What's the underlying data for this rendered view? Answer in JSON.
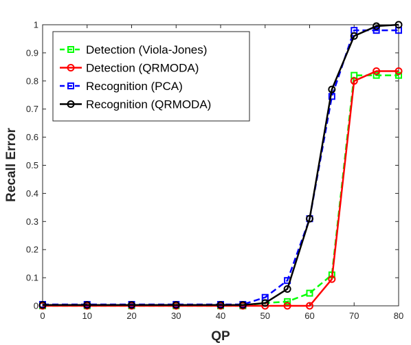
{
  "chart_data": {
    "type": "line",
    "title": "",
    "xlabel": "QP",
    "ylabel": "Recall Error",
    "xlim": [
      0,
      80
    ],
    "ylim": [
      0,
      1
    ],
    "xticks": [
      0,
      10,
      20,
      30,
      40,
      50,
      60,
      70,
      80
    ],
    "xtick_labels": [
      "0",
      "10",
      "20",
      "30",
      "40",
      "50",
      "60",
      "70",
      "80"
    ],
    "yticks": [
      0,
      0.1,
      0.2,
      0.3,
      0.4,
      0.5,
      0.6,
      0.7,
      0.8,
      0.9,
      1
    ],
    "ytick_labels": [
      "0",
      "0.1",
      "0.2",
      "0.3",
      "0.4",
      "0.5",
      "0.6",
      "0.7",
      "0.8",
      "0.9",
      "1"
    ],
    "grid": false,
    "legend_position": "top-left",
    "x": [
      0,
      10,
      20,
      30,
      40,
      45,
      50,
      55,
      60,
      65,
      70,
      75,
      80
    ],
    "series": [
      {
        "name": "Detection (Viola-Jones)",
        "color": "#00ff00",
        "dash": "dashed",
        "marker": "square",
        "values": [
          0,
          0,
          0,
          0,
          0,
          0,
          0.01,
          0.015,
          0.045,
          0.11,
          0.82,
          0.82,
          0.82
        ]
      },
      {
        "name": "Detection (QRMODA)",
        "color": "#ff0000",
        "dash": "solid",
        "marker": "circle",
        "values": [
          0,
          0,
          0,
          0,
          0,
          0,
          0,
          0,
          0,
          0.095,
          0.8,
          0.835,
          0.835
        ]
      },
      {
        "name": "Recognition (PCA)",
        "color": "#0000ff",
        "dash": "dashed",
        "marker": "square",
        "values": [
          0.005,
          0.005,
          0.005,
          0.005,
          0.005,
          0.005,
          0.03,
          0.09,
          0.31,
          0.745,
          0.98,
          0.98,
          0.98
        ]
      },
      {
        "name": "Recognition (QRMODA)",
        "color": "#000000",
        "dash": "solid",
        "marker": "circle",
        "values": [
          0.003,
          0.003,
          0.003,
          0.003,
          0.003,
          0.003,
          0.01,
          0.06,
          0.31,
          0.77,
          0.96,
          0.995,
          1.0
        ]
      }
    ]
  }
}
